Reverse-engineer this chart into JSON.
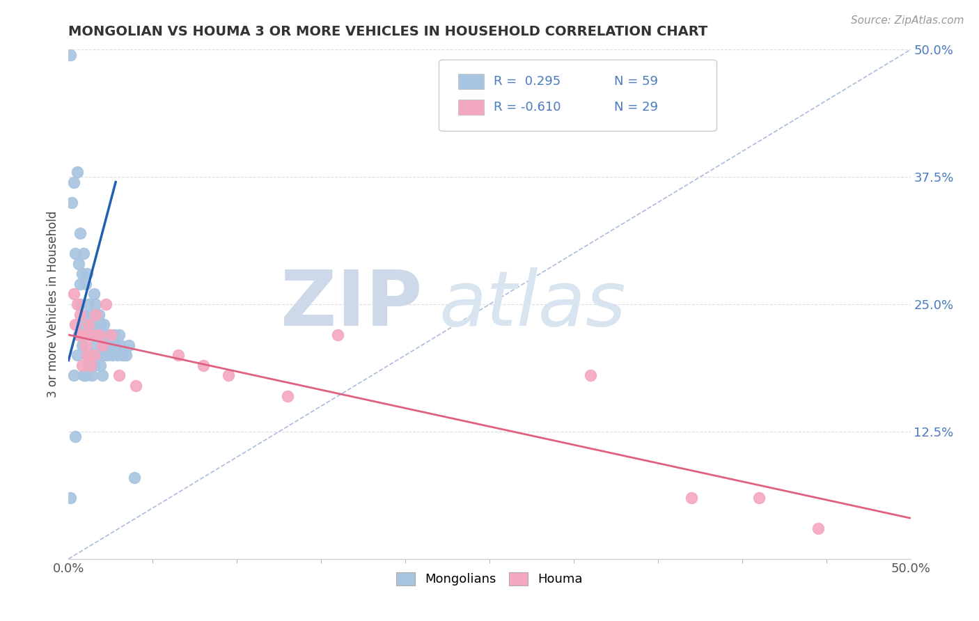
{
  "title": "MONGOLIAN VS HOUMA 3 OR MORE VEHICLES IN HOUSEHOLD CORRELATION CHART",
  "source": "Source: ZipAtlas.com",
  "ylabel": "3 or more Vehicles in Household",
  "xmin": 0.0,
  "xmax": 0.5,
  "ymin": 0.0,
  "ymax": 0.5,
  "xtick_labeled": [
    0.0,
    0.5
  ],
  "xtick_minor": [
    0.05,
    0.1,
    0.15,
    0.2,
    0.25,
    0.3,
    0.35,
    0.4,
    0.45
  ],
  "xticklabels_ends": [
    "0.0%",
    "50.0%"
  ],
  "yticks": [
    0.0,
    0.125,
    0.25,
    0.375,
    0.5
  ],
  "yticklabels": [
    "",
    "12.5%",
    "25.0%",
    "37.5%",
    "50.0%"
  ],
  "mongolian_color": "#a8c4e0",
  "houma_color": "#f4a8c0",
  "mongolian_line_color": "#2060b0",
  "houma_line_color": "#e06080",
  "ref_line_color": "#aabbdd",
  "background_color": "#ffffff",
  "tick_color": "#aaaaaa",
  "ytick_label_color": "#4a7abf",
  "title_color": "#333333",
  "mongolian_x": [
    0.001,
    0.001,
    0.002,
    0.003,
    0.003,
    0.004,
    0.004,
    0.005,
    0.005,
    0.006,
    0.006,
    0.007,
    0.007,
    0.007,
    0.008,
    0.008,
    0.009,
    0.009,
    0.009,
    0.01,
    0.01,
    0.01,
    0.011,
    0.011,
    0.011,
    0.012,
    0.012,
    0.013,
    0.013,
    0.014,
    0.014,
    0.015,
    0.015,
    0.015,
    0.016,
    0.016,
    0.017,
    0.018,
    0.018,
    0.019,
    0.019,
    0.02,
    0.02,
    0.021,
    0.021,
    0.022,
    0.023,
    0.024,
    0.025,
    0.026,
    0.027,
    0.028,
    0.029,
    0.03,
    0.031,
    0.032,
    0.034,
    0.036,
    0.039
  ],
  "mongolian_y": [
    0.495,
    0.06,
    0.35,
    0.37,
    0.18,
    0.3,
    0.12,
    0.38,
    0.2,
    0.29,
    0.22,
    0.27,
    0.32,
    0.25,
    0.28,
    0.21,
    0.3,
    0.23,
    0.18,
    0.27,
    0.22,
    0.18,
    0.28,
    0.24,
    0.2,
    0.25,
    0.19,
    0.24,
    0.2,
    0.23,
    0.18,
    0.26,
    0.22,
    0.19,
    0.25,
    0.21,
    0.22,
    0.24,
    0.2,
    0.23,
    0.19,
    0.22,
    0.18,
    0.23,
    0.2,
    0.21,
    0.2,
    0.22,
    0.21,
    0.2,
    0.22,
    0.21,
    0.2,
    0.22,
    0.21,
    0.2,
    0.2,
    0.21,
    0.08
  ],
  "houma_x": [
    0.003,
    0.004,
    0.005,
    0.006,
    0.007,
    0.008,
    0.009,
    0.01,
    0.011,
    0.012,
    0.013,
    0.014,
    0.015,
    0.016,
    0.018,
    0.02,
    0.022,
    0.025,
    0.03,
    0.04,
    0.065,
    0.08,
    0.095,
    0.13,
    0.16,
    0.31,
    0.37,
    0.41,
    0.445
  ],
  "houma_y": [
    0.26,
    0.23,
    0.25,
    0.22,
    0.24,
    0.19,
    0.22,
    0.21,
    0.2,
    0.23,
    0.19,
    0.22,
    0.2,
    0.24,
    0.22,
    0.21,
    0.25,
    0.22,
    0.18,
    0.17,
    0.2,
    0.19,
    0.18,
    0.16,
    0.22,
    0.18,
    0.06,
    0.06,
    0.03
  ],
  "mongolian_line_x": [
    0.0,
    0.028
  ],
  "mongolian_line_y": [
    0.195,
    0.37
  ],
  "houma_line_x": [
    0.0,
    0.5
  ],
  "houma_line_y": [
    0.22,
    0.04
  ]
}
